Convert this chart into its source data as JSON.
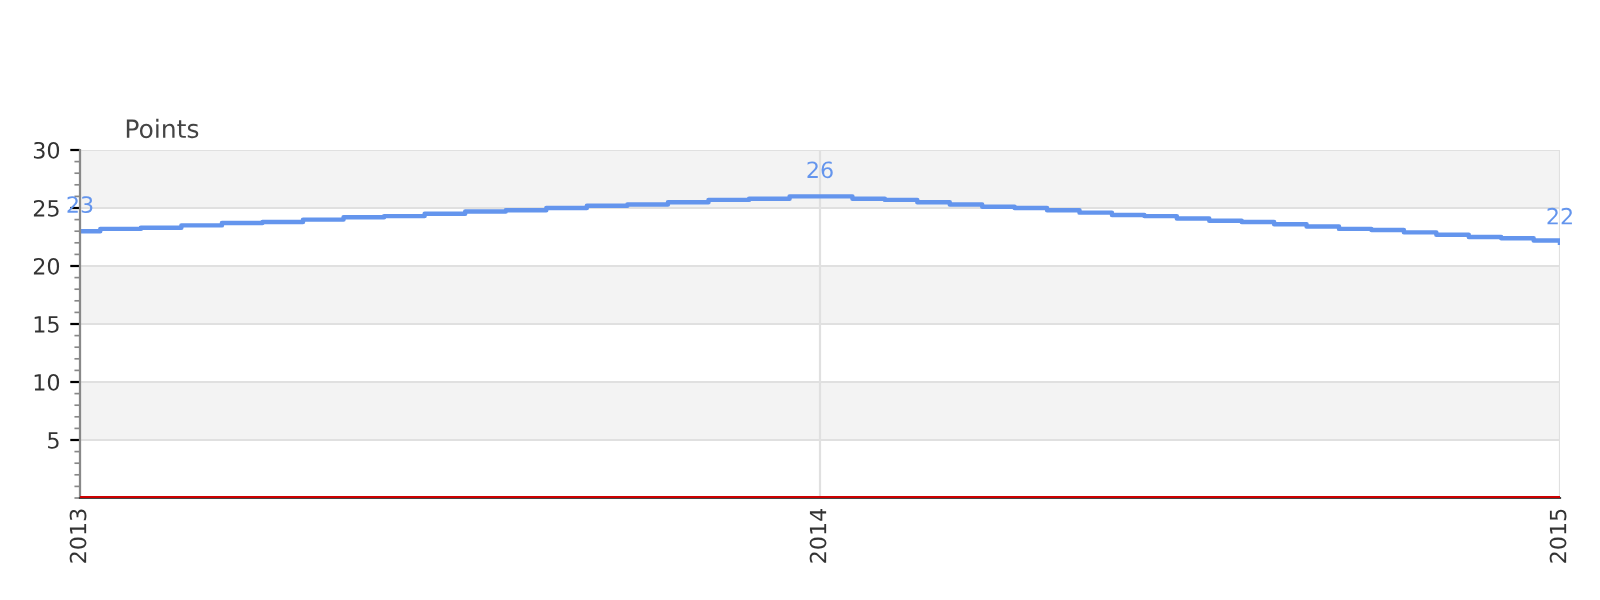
{
  "chart_data": {
    "type": "step",
    "ylabel": "Points",
    "x": [
      "2013-01-01",
      "2013-01-11",
      "2013-01-31",
      "2013-02-20",
      "2013-03-12",
      "2013-04-01",
      "2013-04-21",
      "2013-05-11",
      "2013-05-31",
      "2013-06-20",
      "2013-07-10",
      "2013-07-30",
      "2013-08-19",
      "2013-09-08",
      "2013-09-28",
      "2013-10-18",
      "2013-11-07",
      "2013-11-27",
      "2013-12-17",
      "2014-01-01",
      "2014-01-17",
      "2014-02-02",
      "2014-02-18",
      "2014-03-06",
      "2014-03-22",
      "2014-04-07",
      "2014-04-23",
      "2014-05-09",
      "2014-05-25",
      "2014-06-10",
      "2014-06-26",
      "2014-07-12",
      "2014-07-28",
      "2014-08-13",
      "2014-08-29",
      "2014-09-14",
      "2014-09-30",
      "2014-10-16",
      "2014-11-01",
      "2014-11-17",
      "2014-12-03",
      "2014-12-19",
      "2015-01-01"
    ],
    "series": [
      {
        "color": "#6495ed",
        "values": [
          23,
          23.2,
          23.3,
          23.5,
          23.7,
          23.8,
          24.0,
          24.2,
          24.3,
          24.5,
          24.7,
          24.8,
          25.0,
          25.2,
          25.3,
          25.5,
          25.7,
          25.8,
          26.0,
          26,
          25.8,
          25.7,
          25.5,
          25.3,
          25.1,
          25.0,
          24.8,
          24.6,
          24.4,
          24.3,
          24.1,
          23.9,
          23.8,
          23.6,
          23.4,
          23.2,
          23.1,
          22.9,
          22.7,
          22.5,
          22.4,
          22.2,
          22
        ],
        "value_labels": [
          "23",
          null,
          null,
          null,
          null,
          null,
          null,
          null,
          null,
          null,
          null,
          null,
          null,
          null,
          null,
          null,
          null,
          null,
          null,
          "26",
          null,
          null,
          null,
          null,
          null,
          null,
          null,
          null,
          null,
          null,
          null,
          null,
          null,
          null,
          null,
          null,
          null,
          null,
          null,
          null,
          null,
          null,
          "22"
        ]
      }
    ],
    "xlim": [
      "2013-01-01",
      "2015-01-01"
    ],
    "xticks": [
      {
        "value": "2013-01-01",
        "label": "2013"
      },
      {
        "value": "2014-01-01",
        "label": "2014"
      },
      {
        "value": "2015-01-01",
        "label": "2015"
      }
    ],
    "ylim": [
      0,
      30
    ],
    "yticks": [
      5,
      10,
      15,
      20,
      25,
      30
    ],
    "ref_lines": [
      {
        "axis": "y",
        "value": 0,
        "color": "#cc0000"
      }
    ],
    "grid": true,
    "legend": false
  }
}
